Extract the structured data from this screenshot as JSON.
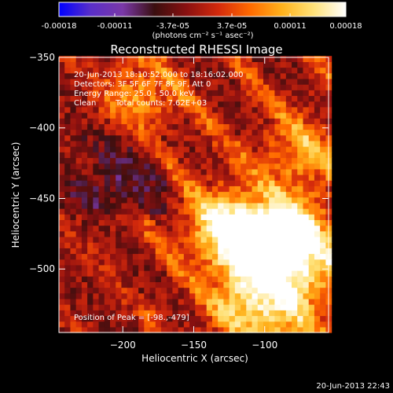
{
  "colorbar": {
    "tick_labels": [
      "-0.00018",
      "-0.00011",
      "-3.7e-05",
      "3.7e-05",
      "0.00011",
      "0.00018"
    ],
    "tick_values": [
      -0.00018,
      -0.00011,
      -3.7e-05,
      3.7e-05,
      0.00011,
      0.00018
    ],
    "range": [
      -0.00018,
      0.00018
    ],
    "unit_label": "(photons cm⁻² s⁻¹ asec⁻²)",
    "colors": [
      "#0000ff",
      "#5a2fc8",
      "#7a38a8",
      "#3a0f0f",
      "#8a1010",
      "#d42a0c",
      "#ff6a00",
      "#ffb21c",
      "#ffe27a",
      "#ffffff"
    ]
  },
  "chart_data": {
    "type": "heatmap",
    "title": "Reconstructed RHESSI Image",
    "xlabel": "Heliocentric X (arcsec)",
    "ylabel": "Heliocentric Y (arcsec)",
    "xlim": [
      -245,
      -55
    ],
    "ylim": [
      -545,
      -350
    ],
    "x_ticks": [
      -200,
      -150,
      -100
    ],
    "x_tick_labels": [
      "-200",
      "-150",
      "-100"
    ],
    "y_ticks": [
      -350,
      -400,
      -450,
      -500
    ],
    "y_tick_labels": [
      "-350",
      "-400",
      "-450",
      "-500"
    ],
    "peak_position": [
      -98,
      -479
    ],
    "annotations": {
      "time_range": "20-Jun-2013 18:10:52.000 to 18:16:02.000",
      "detectors": "Detectors: 3F 5F 6F 7F 8F 9F, Att 0",
      "energy": "Energy Range: 25.0 - 50.0 keV",
      "algorithm": "Clean",
      "counts": "Total counts: 7.62E+03",
      "peak": "Position of Peak = [-98.,-479]"
    },
    "bright_sources": [
      {
        "x": -103,
        "y": -485,
        "level": 1.0
      },
      {
        "x": -128,
        "y": -470,
        "level": 0.85
      },
      {
        "x": -82,
        "y": -472,
        "level": 0.75
      },
      {
        "x": -70,
        "y": -500,
        "level": 0.6
      },
      {
        "x": -113,
        "y": -520,
        "level": 0.55
      },
      {
        "x": -90,
        "y": -540,
        "level": 0.5
      },
      {
        "x": -190,
        "y": -380,
        "level": 0.5
      },
      {
        "x": -75,
        "y": -418,
        "level": 0.45
      }
    ],
    "grid": false
  },
  "footer": {
    "timestamp": "20-Jun-2013 22:43"
  }
}
